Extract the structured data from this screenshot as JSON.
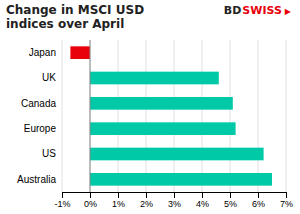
{
  "chart_data": {
    "type": "bar",
    "orientation": "horizontal",
    "title": "Change in MSCI USD\nindices over April",
    "categories": [
      "Japan",
      "UK",
      "Canada",
      "Europe",
      "US",
      "Australia"
    ],
    "values": [
      -0.7,
      4.6,
      5.1,
      5.2,
      6.2,
      6.5
    ],
    "colors": [
      "#e8000b",
      "#00C9A7",
      "#00C9A7",
      "#00C9A7",
      "#00C9A7",
      "#00C9A7"
    ],
    "xlim": [
      -1.0,
      7.0
    ],
    "xticks": [
      {
        "value": -1,
        "label": "-1%"
      },
      {
        "value": 0,
        "label": "0%"
      },
      {
        "value": 1,
        "label": "1%"
      },
      {
        "value": 2,
        "label": "2%"
      },
      {
        "value": 3,
        "label": "3%"
      },
      {
        "value": 4,
        "label": "4%"
      },
      {
        "value": 5,
        "label": "5%"
      },
      {
        "value": 6,
        "label": "6%"
      },
      {
        "value": 7,
        "label": "7%"
      }
    ],
    "grid": true,
    "annotations": [
      {
        "text": "BD",
        "color": "#222222"
      },
      {
        "text": "SWISS",
        "color": "#e8000b"
      },
      {
        "text": "▶",
        "color": "#e8000b"
      }
    ]
  }
}
